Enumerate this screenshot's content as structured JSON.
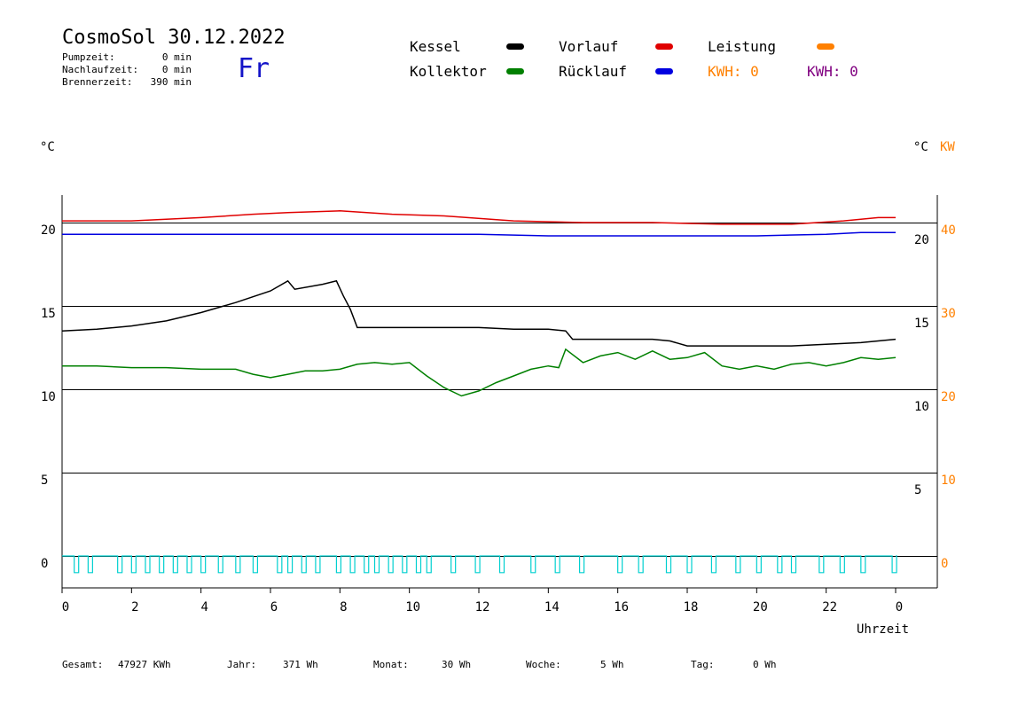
{
  "header": {
    "title": "CosmoSol 30.12.2022",
    "weekday": "Fr",
    "stats": [
      {
        "label": "Pumpzeit:",
        "value": "0 min"
      },
      {
        "label": "Nachlaufzeit:",
        "value": "0 min"
      },
      {
        "label": "Brennerzeit:",
        "value": "390 min"
      }
    ]
  },
  "legend": {
    "items": [
      {
        "label": "Kessel",
        "color": "#000000"
      },
      {
        "label": "Vorlauf",
        "color": "#e00000"
      },
      {
        "label": "Leistung",
        "color": "#ff8000"
      },
      {
        "label": "Kollektor",
        "color": "#008000"
      },
      {
        "label": "Rücklauf",
        "color": "#0000e0"
      }
    ],
    "kwh_orange": "KWH: 0",
    "kwh_purple": "KWH: 0",
    "kwh_orange_color": "#ff8000",
    "kwh_purple_color": "#800080"
  },
  "axes": {
    "left_unit": "°C",
    "right_unit_c": "°C",
    "right_unit_kw": "KW",
    "xlabel": "Uhrzeit"
  },
  "footer": {
    "gesamt_label": "Gesamt:",
    "gesamt_value": "47927 KWh",
    "jahr_label": "Jahr:",
    "jahr_value": "371 Wh",
    "monat_label": "Monat:",
    "monat_value": "30 Wh",
    "woche_label": "Woche:",
    "woche_value": "5 Wh",
    "tag_label": "Tag:",
    "tag_value": "0 Wh"
  },
  "chart_data": {
    "type": "line",
    "x_ticks": [
      "0",
      "2",
      "4",
      "6",
      "8",
      "10",
      "12",
      "14",
      "16",
      "18",
      "20",
      "22",
      "0"
    ],
    "xlim": [
      0,
      24
    ],
    "ylim": [
      -1.5,
      22
    ],
    "y_left_ticks": [
      "0",
      "5",
      "10",
      "15",
      "20"
    ],
    "y_right_c_ticks": [
      "5",
      "10",
      "15",
      "20"
    ],
    "y_right_kw_ticks": [
      "0",
      "10",
      "20",
      "30",
      "40"
    ],
    "gridlines_y": [
      0,
      5,
      10,
      15,
      20
    ],
    "series": [
      {
        "name": "Vorlauf",
        "color": "#e00000",
        "x": [
          0,
          2,
          4,
          5.5,
          6.5,
          8,
          9.5,
          11,
          13,
          15,
          17,
          19,
          21,
          22.5,
          23.5,
          24
        ],
        "y": [
          20.1,
          20.1,
          20.3,
          20.5,
          20.6,
          20.7,
          20.5,
          20.4,
          20.1,
          20.0,
          20.0,
          19.9,
          19.9,
          20.1,
          20.3,
          20.3
        ]
      },
      {
        "name": "Rücklauf",
        "color": "#0000e0",
        "x": [
          0,
          2,
          4,
          6,
          8,
          10,
          12,
          14,
          16,
          18,
          20,
          22,
          23,
          24
        ],
        "y": [
          19.3,
          19.3,
          19.3,
          19.3,
          19.3,
          19.3,
          19.3,
          19.2,
          19.2,
          19.2,
          19.2,
          19.3,
          19.4,
          19.4
        ]
      },
      {
        "name": "Kessel",
        "color": "#000000",
        "x": [
          0,
          1,
          2,
          3,
          4,
          5,
          6,
          6.5,
          6.7,
          7.5,
          7.9,
          8.1,
          8.3,
          8.5,
          9,
          10,
          11,
          12,
          13,
          14,
          14.5,
          14.7,
          15,
          16,
          17,
          17.5,
          18,
          19,
          20,
          21,
          22,
          23,
          23.5,
          24
        ],
        "y": [
          13.5,
          13.6,
          13.8,
          14.1,
          14.6,
          15.2,
          15.9,
          16.5,
          16.0,
          16.3,
          16.5,
          15.6,
          14.8,
          13.7,
          13.7,
          13.7,
          13.7,
          13.7,
          13.6,
          13.6,
          13.5,
          13.0,
          13.0,
          13.0,
          13.0,
          12.9,
          12.6,
          12.6,
          12.6,
          12.6,
          12.7,
          12.8,
          12.9,
          13.0
        ]
      },
      {
        "name": "Kollektor",
        "color": "#008000",
        "x": [
          0,
          1,
          2,
          3,
          4,
          5,
          5.5,
          6,
          6.5,
          7,
          7.5,
          8,
          8.5,
          9,
          9.5,
          10,
          10.5,
          11,
          11.5,
          12,
          12.5,
          13,
          13.5,
          14,
          14.3,
          14.5,
          15,
          15.5,
          16,
          16.5,
          17,
          17.5,
          18,
          18.5,
          19,
          19.5,
          20,
          20.5,
          21,
          21.5,
          22,
          22.5,
          23,
          23.5,
          24
        ],
        "y": [
          11.4,
          11.4,
          11.3,
          11.3,
          11.2,
          11.2,
          10.9,
          10.7,
          10.9,
          11.1,
          11.1,
          11.2,
          11.5,
          11.6,
          11.5,
          11.6,
          10.8,
          10.1,
          9.6,
          9.9,
          10.4,
          10.8,
          11.2,
          11.4,
          11.3,
          12.4,
          11.6,
          12.0,
          12.2,
          11.8,
          12.3,
          11.8,
          11.9,
          12.2,
          11.4,
          11.2,
          11.4,
          11.2,
          11.5,
          11.6,
          11.4,
          11.6,
          11.9,
          11.8,
          11.9
        ]
      }
    ],
    "pump_series": {
      "name": "Pumpe",
      "color": "#00d0d0",
      "pulses_x": [
        0.35,
        0.75,
        1.6,
        2.0,
        2.4,
        2.8,
        3.2,
        3.6,
        4.0,
        4.5,
        5.0,
        5.5,
        6.2,
        6.5,
        6.9,
        7.3,
        7.9,
        8.3,
        8.7,
        9.0,
        9.4,
        9.8,
        10.2,
        10.5,
        11.2,
        11.9,
        12.6,
        13.5,
        14.2,
        14.9,
        16.0,
        16.6,
        17.4,
        18.0,
        18.7,
        19.4,
        20.0,
        20.6,
        21.0,
        21.8,
        22.4,
        23.0,
        23.9
      ],
      "baseline": 0,
      "low": -1
    }
  }
}
